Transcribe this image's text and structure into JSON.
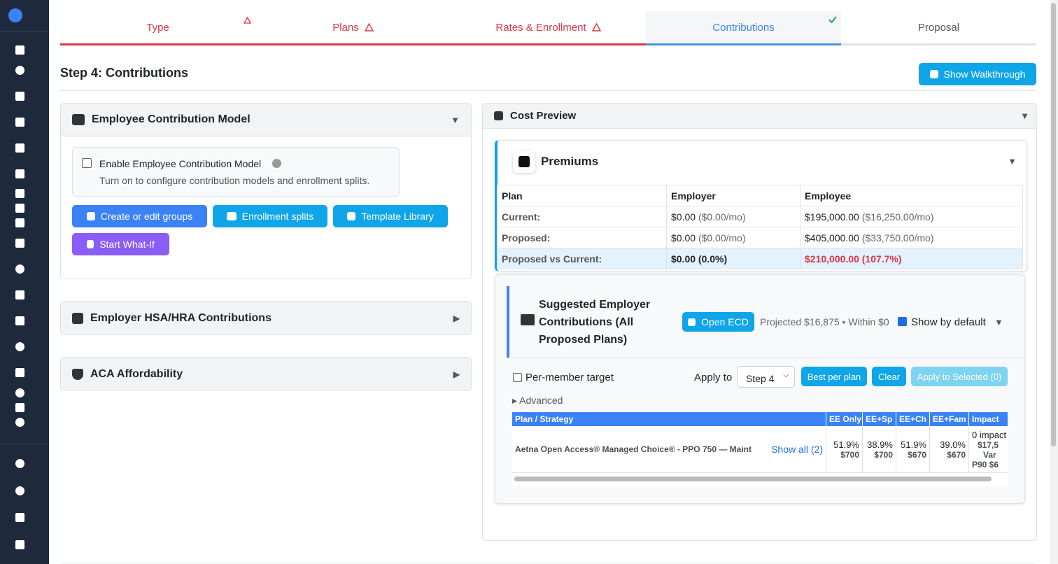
{
  "tabs": [
    {
      "label": "Type"
    },
    {
      "label": "Plans"
    },
    {
      "label": "Rates & Enrollment"
    },
    {
      "label": "Contributions"
    },
    {
      "label": "Proposal"
    }
  ],
  "page_title": "Step 4: Contributions",
  "walkthrough_button": "Show Walkthrough",
  "contribution_model": {
    "title": "Employee Contribution Model",
    "checkbox_label": "Enable Employee Contribution Model",
    "hint": "Turn on to configure contribution models and enrollment splits.",
    "buttons": [
      "Create or edit groups",
      "Enrollment splits",
      "Template Library",
      "Start What-If"
    ]
  },
  "hsa_panel": {
    "title": "Employer HSA/HRA Contributions"
  },
  "aca_panel": {
    "title": "ACA Affordability"
  },
  "cost_preview": {
    "title": "Cost Preview",
    "premiums": {
      "title": "Premiums",
      "columns": [
        "Plan",
        "Employer",
        "Employee"
      ],
      "rows": [
        [
          "Current:",
          "$0.00",
          "($0.00/mo)",
          "$195,000.00",
          "($16,250.00/mo)"
        ],
        [
          "Proposed:",
          "$0.00",
          "($0.00/mo)",
          "$405,000.00",
          "($33,750.00/mo)"
        ]
      ],
      "diff_row": [
        "Proposed vs Current:",
        "$0.00 (0.0%)",
        "$210,000.00 (107.7%)"
      ]
    },
    "suggested": {
      "title": "Suggested Employer Contributions (All Proposed Plans)",
      "open_button": "Open ECD",
      "projected": "Projected $16,875 • Within $0",
      "show_default": "Show by default",
      "per_member": "Per-member target",
      "apply_to": "Apply to",
      "apply_select": "Step 4",
      "buttons": [
        "Best per plan",
        "Clear",
        "Apply to Selected (0)"
      ],
      "advanced": "Advanced",
      "columns": [
        "Plan / Strategy",
        "EE Only",
        "EE+Sp",
        "EE+Ch",
        "EE+Fam",
        "Impact"
      ],
      "row": {
        "plan": "Aetna Open Access® Managed Choice® - PPO 750 — Maint",
        "show_all": "Show all (2)",
        "cells": [
          [
            "51.9%",
            "$700"
          ],
          [
            "38.9%",
            "$700"
          ],
          [
            "51.9%",
            "$670"
          ],
          [
            "39.0%",
            "$670"
          ]
        ],
        "impact": [
          "0 impact",
          "$17,5",
          "Var",
          "P90 $6"
        ]
      }
    }
  }
}
